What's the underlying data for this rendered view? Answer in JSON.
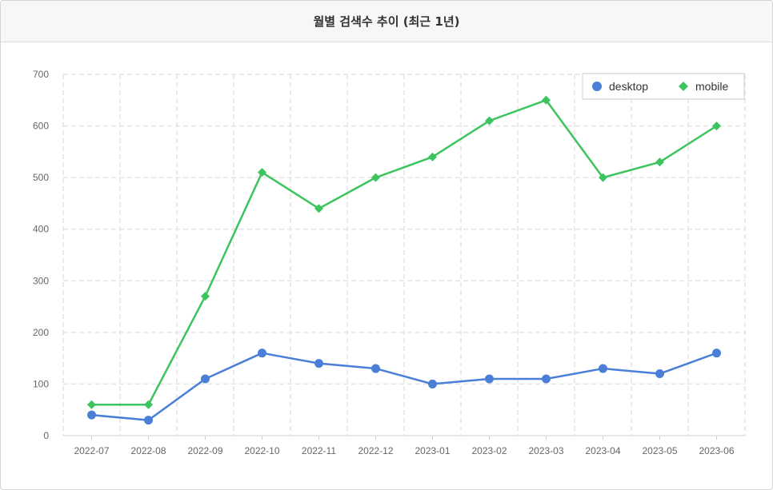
{
  "panel": {
    "title": "월별 검색수 추이 (최근 1년)"
  },
  "colors": {
    "desktop": "#4a7fd8",
    "mobile": "#3cc45e",
    "grid": "#e4e4e4",
    "axis": "#cfcfcf"
  },
  "chart_data": {
    "type": "line",
    "title": "월별 검색수 추이 (최근 1년)",
    "categories": [
      "2022-07",
      "2022-08",
      "2022-09",
      "2022-10",
      "2022-11",
      "2022-12",
      "2023-01",
      "2023-02",
      "2023-03",
      "2023-04",
      "2023-05",
      "2023-06"
    ],
    "series": [
      {
        "name": "desktop",
        "marker": "circle",
        "values": [
          40,
          30,
          110,
          160,
          140,
          130,
          100,
          110,
          110,
          130,
          120,
          160
        ]
      },
      {
        "name": "mobile",
        "marker": "diamond",
        "values": [
          60,
          60,
          270,
          510,
          440,
          500,
          540,
          610,
          650,
          500,
          530,
          600
        ]
      }
    ],
    "ylim": [
      0,
      700
    ],
    "yticks": [
      0,
      100,
      200,
      300,
      400,
      500,
      600,
      700
    ],
    "grid": true,
    "grid_style": "dashed",
    "legend_position": "top-right"
  }
}
